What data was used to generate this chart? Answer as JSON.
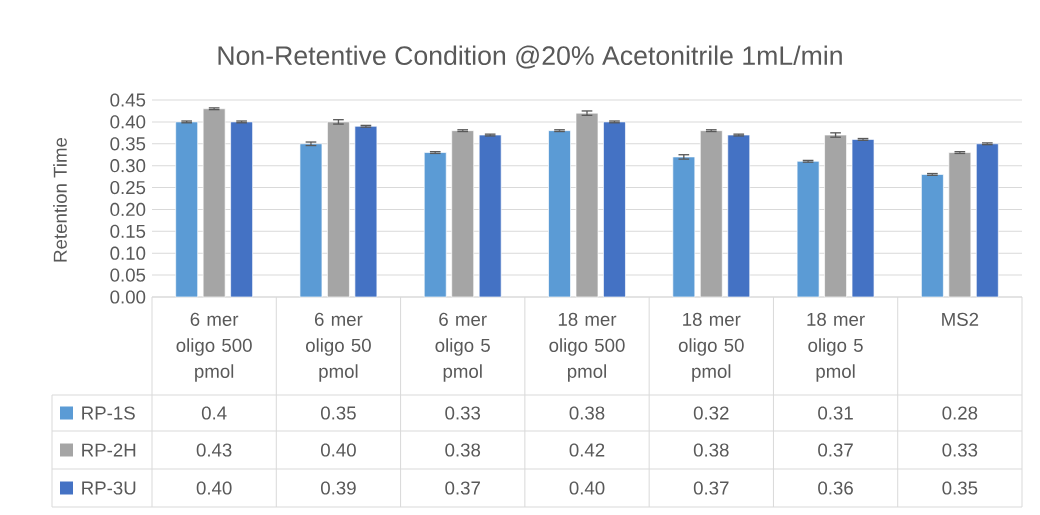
{
  "chart_data": {
    "type": "bar",
    "title": "Non-Retentive Condition @20% Acetonitrile 1mL/min",
    "ylabel": "Retention Time",
    "categories": [
      "6 mer oligo 500 pmol",
      "6 mer oligo 50 pmol",
      "6 mer oligo 5 pmol",
      "18 mer oligo 500 pmol",
      "18 mer oligo 50 pmol",
      "18 mer oligo 5 pmol",
      "MS2"
    ],
    "series": [
      {
        "name": "RP-1S",
        "color": "#5b9bd5",
        "values": [
          0.4,
          0.35,
          0.33,
          0.38,
          0.32,
          0.31,
          0.28
        ],
        "value_labels": [
          "0.4",
          "0.35",
          "0.33",
          "0.38",
          "0.32",
          "0.31",
          "0.28"
        ],
        "errors": [
          0.002,
          0.004,
          0.002,
          0.002,
          0.005,
          0.002,
          0.002
        ]
      },
      {
        "name": "RP-2H",
        "color": "#a5a5a5",
        "values": [
          0.43,
          0.4,
          0.38,
          0.42,
          0.38,
          0.37,
          0.33
        ],
        "value_labels": [
          "0.43",
          "0.40",
          "0.38",
          "0.42",
          "0.38",
          "0.37",
          "0.33"
        ],
        "errors": [
          0.002,
          0.005,
          0.002,
          0.005,
          0.002,
          0.005,
          0.002
        ]
      },
      {
        "name": "RP-3U",
        "color": "#4472c4",
        "values": [
          0.4,
          0.39,
          0.37,
          0.4,
          0.37,
          0.36,
          0.35
        ],
        "value_labels": [
          "0.40",
          "0.39",
          "0.37",
          "0.40",
          "0.37",
          "0.36",
          "0.35"
        ],
        "errors": [
          0.002,
          0.002,
          0.002,
          0.002,
          0.002,
          0.002,
          0.002
        ]
      }
    ],
    "ylim": [
      0,
      0.45
    ],
    "yticks": [
      {
        "value": 0,
        "label": "0.00"
      },
      {
        "value": 0.05,
        "label": "0.05"
      },
      {
        "value": 0.1,
        "label": "0.10"
      },
      {
        "value": 0.15,
        "label": "0.15"
      },
      {
        "value": 0.2,
        "label": "0.20"
      },
      {
        "value": 0.25,
        "label": "0.25"
      },
      {
        "value": 0.3,
        "label": "0.30"
      },
      {
        "value": 0.35,
        "label": "0.35"
      },
      {
        "value": 0.4,
        "label": "0.40"
      },
      {
        "value": 0.45,
        "label": "0.45"
      }
    ],
    "grid": "y",
    "legend": "bottom"
  }
}
